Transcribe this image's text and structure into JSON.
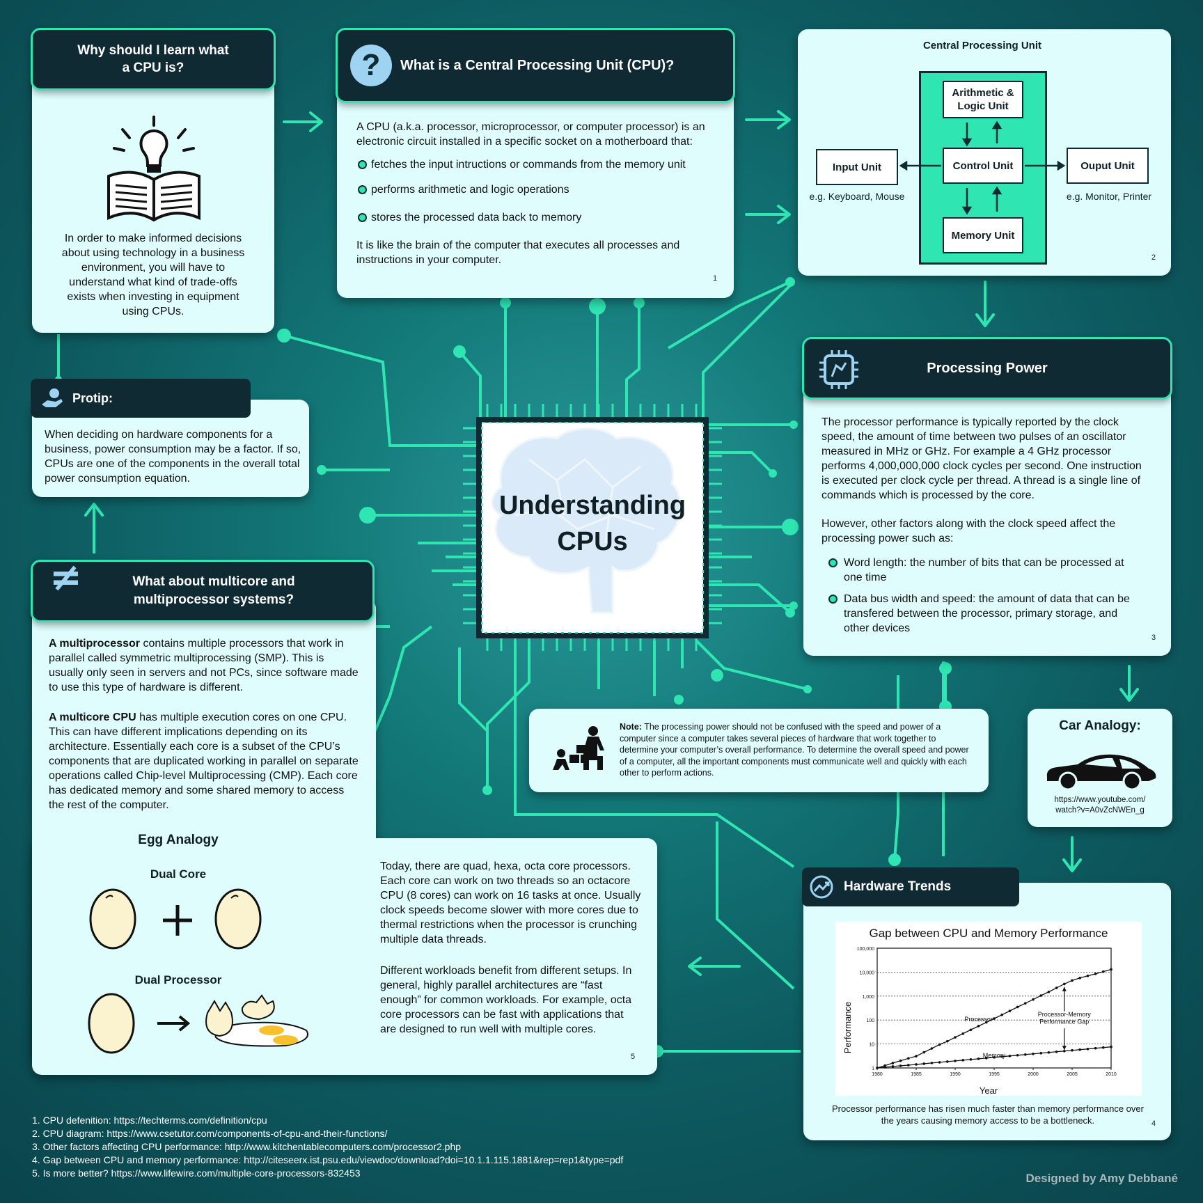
{
  "center": {
    "title_line1": "Understanding",
    "title_line2": "CPUs"
  },
  "why": {
    "title": "Why should I learn what a CPU is?",
    "body": "In order to make informed decisions about using technology in a business environment, you will have to understand what kind of trade-offs exists when investing in equipment using CPUs."
  },
  "what": {
    "title": "What is a Central Processing Unit (CPU)?",
    "intro": "A CPU (a.k.a. processor, microprocessor, or computer processor) is an electronic circuit installed in a specific socket on a motherboard that:",
    "bullets": [
      "fetches the input intructions or commands from the memory unit",
      "performs arithmetic and logic operations",
      "stores the processed data back to memory"
    ],
    "closing": "It is like the brain of the computer that executes all processes and instructions in your computer.",
    "num": "1"
  },
  "diagram": {
    "title": "Central Processing Unit",
    "alu": "Arithmetic & Logic Unit",
    "control": "Control Unit",
    "memory": "Memory Unit",
    "input": "Input Unit",
    "input_eg": "e.g. Keyboard, Mouse",
    "output": "Ouput Unit",
    "output_eg": "e.g. Monitor, Printer",
    "num": "2"
  },
  "protip": {
    "title": "Protip:",
    "body": "When deciding on hardware components for a business, power consumption may be a factor. If so, CPUs are one of the components in the overall total power consumption equation."
  },
  "processing": {
    "title": "Processing Power",
    "para1": "The processor performance is typically reported by the clock speed, the amount of time between two pulses of an oscillator measured in MHz or GHz. For example a 4 GHz processor performs 4,000,000,000 clock cycles per second. One instruction is executed per clock cycle per thread. A thread is a single line of commands which is processed by the core.",
    "para2": "However, other factors along with the clock speed affect the processing power such as:",
    "bullets": [
      "Word length: the number of bits that can be processed at one time",
      "Data bus width and speed: the amount of data that can be transfered between the processor, primary storage, and other devices"
    ],
    "num": "3"
  },
  "multicore": {
    "title": "What about multicore and multiprocessor systems?",
    "mp_bold": "A multiprocessor",
    "mp_text": " contains multiple processors that work in parallel called symmetric multiprocessing (SMP). This is usually only seen in servers and not PCs, since software made to use this type of hardware is different.",
    "mc_bold": "A multicore CPU",
    "mc_text": " has multiple execution cores on one CPU. This can have different implications depending on its architecture. Essentially each core is a subset of the CPU’s components that are duplicated working in parallel on separate operations called Chip-level Multiprocessing (CMP). Each core has dedicated memory and some shared memory to access the rest of the computer.",
    "egg_title": "Egg Analogy",
    "dual_core": "Dual Core",
    "dual_processor": "Dual Processor",
    "today": "Today, there are quad, hexa, octa core processors. Each core can work on two threads so an octacore CPU (8 cores) can work on 16 tasks at once. Usually clock speeds become slower with more cores due to thermal restrictions when the processor is crunching multiple data threads.",
    "workloads": "Different workloads benefit from different setups. In general, highly parallel architectures are “fast enough” for common workloads. For example, octa core processors can be fast with applications that are designed to run well with multiple cores.",
    "num": "5"
  },
  "note": {
    "bold": "Note:",
    "text": " The processing power should not be confused with the speed and power of a computer since a computer takes several pieces of hardware that work together to determine your computer’s overall performance. To determine the overall speed and power of a computer, all the important components must communicate well and quickly with each other to perform actions."
  },
  "car": {
    "title": "Car Analogy:",
    "link": "https://www.youtube.com/watch?v=A0vZcNWEn_g",
    "link_line1": "https://www.youtube.com/",
    "link_line2": "watch?v=A0vZcNWEn_g"
  },
  "trends": {
    "title": "Hardware Trends",
    "caption": "Processor performance has risen much faster than memory performance over the years causing memory access to be a bottleneck.",
    "num": "4"
  },
  "chart_data": {
    "type": "line",
    "title": "Gap between CPU and Memory Performance",
    "xlabel": "Year",
    "ylabel": "Performance",
    "y_scale": "log",
    "ylim": [
      1,
      100000
    ],
    "xlim": [
      1980,
      2010
    ],
    "x_ticks": [
      "1980",
      "1985",
      "1990",
      "1995",
      "2000",
      "2005",
      "2010"
    ],
    "y_ticks": [
      "1",
      "10",
      "100",
      "1,000",
      "10,000",
      "100,000"
    ],
    "annotations": [
      "Processor",
      "Memory",
      "Processor-Memory",
      "Performance Gap"
    ],
    "x": [
      1980,
      1981,
      1982,
      1983,
      1984,
      1985,
      1986,
      1987,
      1988,
      1989,
      1990,
      1991,
      1992,
      1993,
      1994,
      1995,
      1996,
      1997,
      1998,
      1999,
      2000,
      2001,
      2002,
      2003,
      2004,
      2005,
      2006,
      2007,
      2008,
      2009,
      2010
    ],
    "series": [
      {
        "name": "Processor",
        "values": [
          1,
          1.25,
          1.6,
          2,
          2.5,
          3.1,
          4.5,
          6.5,
          9.5,
          13,
          19,
          27,
          39,
          56,
          80,
          115,
          165,
          240,
          350,
          500,
          720,
          1050,
          1500,
          2200,
          3200,
          4500,
          5700,
          7000,
          8500,
          10500,
          13000
        ]
      },
      {
        "name": "Memory",
        "values": [
          1,
          1.07,
          1.15,
          1.23,
          1.31,
          1.4,
          1.5,
          1.61,
          1.72,
          1.84,
          1.97,
          2.11,
          2.26,
          2.41,
          2.58,
          2.76,
          2.96,
          3.16,
          3.38,
          3.62,
          3.87,
          4.14,
          4.43,
          4.74,
          5.07,
          5.43,
          5.81,
          6.2,
          6.65,
          7.1,
          7.6
        ]
      }
    ],
    "grid": "dotted horizontal"
  },
  "references": [
    "1. CPU defenition: https://techterms.com/definition/cpu",
    "2. CPU diagram: https://www.csetutor.com/components-of-cpu-and-their-functions/",
    "3. Other factors affecting CPU performance: http://www.kitchentablecomputers.com/processor2.php",
    "4. Gap between CPU and memory performance: http://citeseerx.ist.psu.edu/viewdoc/download?doi=10.1.1.115.1881&rep=rep1&type=pdf",
    "5. Is more better? https://www.lifewire.com/multiple-core-processors-832453"
  ],
  "credit": "Designed by Amy Debbané",
  "colors": {
    "accent": "#2fe5b2",
    "dark": "#0f2a33",
    "card": "#dffdfd",
    "background": "#0d5b60"
  }
}
